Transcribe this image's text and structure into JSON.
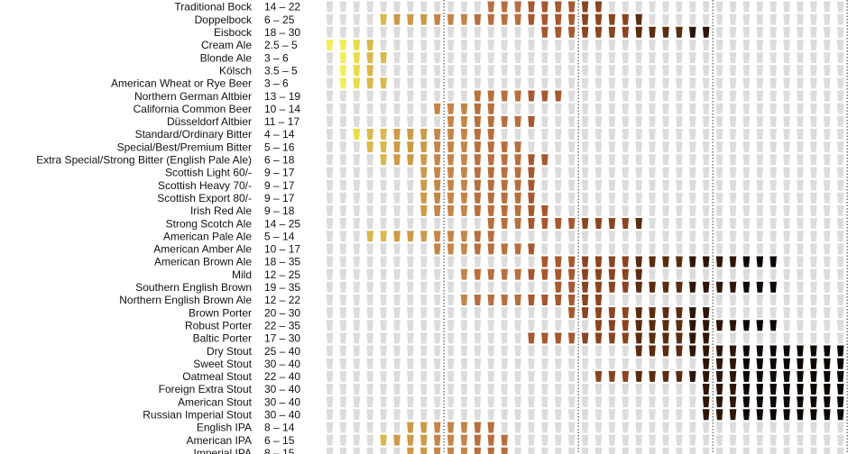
{
  "chart_data": {
    "type": "table",
    "title": "",
    "xlabel": "",
    "ylabel": "",
    "x_unit": "SRM",
    "srm_bins": [
      2,
      3,
      4,
      5,
      6,
      7,
      8,
      9,
      10,
      11,
      12,
      13,
      14,
      15,
      16,
      17,
      18,
      19,
      20,
      21,
      22,
      23,
      24,
      25,
      26,
      27,
      28,
      29,
      30,
      31,
      32,
      33,
      34,
      35,
      36,
      37,
      38,
      39,
      40
    ],
    "dotted_dividers_at": [
      10,
      20,
      30,
      40
    ],
    "color_scale": [
      {
        "up_to": 3,
        "color": "#f3ec5d"
      },
      {
        "up_to": 4,
        "color": "#e8dc4a"
      },
      {
        "up_to": 6,
        "color": "#d9b84c"
      },
      {
        "up_to": 9,
        "color": "#cc9a48"
      },
      {
        "up_to": 12,
        "color": "#c48548"
      },
      {
        "up_to": 16,
        "color": "#b86f3e"
      },
      {
        "up_to": 20,
        "color": "#a6582f"
      },
      {
        "up_to": 24,
        "color": "#8a4420"
      },
      {
        "up_to": 28,
        "color": "#5a2d10"
      },
      {
        "up_to": 32,
        "color": "#2e1606"
      },
      {
        "up_to": 99,
        "color": "#0d0603"
      }
    ],
    "empty_color": "#dcdcdc",
    "styles": [
      {
        "name": "Traditional Bock",
        "range": "14 – 22",
        "min": 14,
        "max": 22
      },
      {
        "name": "Doppelbock",
        "range": "6 – 25",
        "min": 6,
        "max": 25
      },
      {
        "name": "Eisbock",
        "range": "18 – 30",
        "min": 18,
        "max": 30
      },
      {
        "name": "Cream Ale",
        "range": "2.5 – 5",
        "min": 2.5,
        "max": 5
      },
      {
        "name": "Blonde Ale",
        "range": "3 – 6",
        "min": 3,
        "max": 6
      },
      {
        "name": "Kölsch",
        "range": "3.5 – 5",
        "min": 3.5,
        "max": 5
      },
      {
        "name": "American Wheat or Rye Beer",
        "range": "3 – 6",
        "min": 3,
        "max": 6
      },
      {
        "name": "Northern German Altbier",
        "range": "13 – 19",
        "min": 13,
        "max": 19
      },
      {
        "name": "California Common Beer",
        "range": "10 – 14",
        "min": 10,
        "max": 14
      },
      {
        "name": "Düsseldorf Altbier",
        "range": "11 – 17",
        "min": 11,
        "max": 17
      },
      {
        "name": "Standard/Ordinary Bitter",
        "range": "4 – 14",
        "min": 4,
        "max": 14
      },
      {
        "name": "Special/Best/Premium Bitter",
        "range": "5 – 16",
        "min": 5,
        "max": 16
      },
      {
        "name": "Extra Special/Strong Bitter (English Pale Ale)",
        "range": "6 – 18",
        "min": 6,
        "max": 18
      },
      {
        "name": "Scottish Light 60/-",
        "range": "9 – 17",
        "min": 9,
        "max": 17
      },
      {
        "name": "Scottish Heavy 70/-",
        "range": "9 – 17",
        "min": 9,
        "max": 17
      },
      {
        "name": "Scottish Export 80/-",
        "range": "9 – 17",
        "min": 9,
        "max": 17
      },
      {
        "name": "Irish Red Ale",
        "range": "9 – 18",
        "min": 9,
        "max": 18
      },
      {
        "name": "Strong Scotch Ale",
        "range": "14 – 25",
        "min": 14,
        "max": 25
      },
      {
        "name": "American Pale Ale",
        "range": "5 – 14",
        "min": 5,
        "max": 14
      },
      {
        "name": "American Amber Ale",
        "range": "10 – 17",
        "min": 10,
        "max": 17
      },
      {
        "name": "American Brown Ale",
        "range": "18 – 35",
        "min": 18,
        "max": 35
      },
      {
        "name": "Mild",
        "range": "12 – 25",
        "min": 12,
        "max": 25
      },
      {
        "name": "Southern English Brown",
        "range": "19 – 35",
        "min": 19,
        "max": 35
      },
      {
        "name": "Northern English Brown Ale",
        "range": "12 – 22",
        "min": 12,
        "max": 22
      },
      {
        "name": "Brown Porter",
        "range": "20 – 30",
        "min": 20,
        "max": 30
      },
      {
        "name": "Robust Porter",
        "range": "22 – 35",
        "min": 22,
        "max": 35
      },
      {
        "name": "Baltic Porter",
        "range": "17 – 30",
        "min": 17,
        "max": 30
      },
      {
        "name": "Dry Stout",
        "range": "25 – 40",
        "min": 25,
        "max": 40
      },
      {
        "name": "Sweet Stout",
        "range": "30 – 40",
        "min": 30,
        "max": 40
      },
      {
        "name": "Oatmeal Stout",
        "range": "22 – 40",
        "min": 22,
        "max": 40
      },
      {
        "name": "Foreign Extra Stout",
        "range": "30 – 40",
        "min": 30,
        "max": 40
      },
      {
        "name": "American Stout",
        "range": "30 – 40",
        "min": 30,
        "max": 40
      },
      {
        "name": "Russian Imperial Stout",
        "range": "30 – 40",
        "min": 30,
        "max": 40
      },
      {
        "name": "English IPA",
        "range": "8 – 14",
        "min": 8,
        "max": 14
      },
      {
        "name": "American IPA",
        "range": "6 – 15",
        "min": 6,
        "max": 15
      },
      {
        "name": "Imperial IPA",
        "range": "8 – 15",
        "min": 8,
        "max": 15
      }
    ]
  }
}
